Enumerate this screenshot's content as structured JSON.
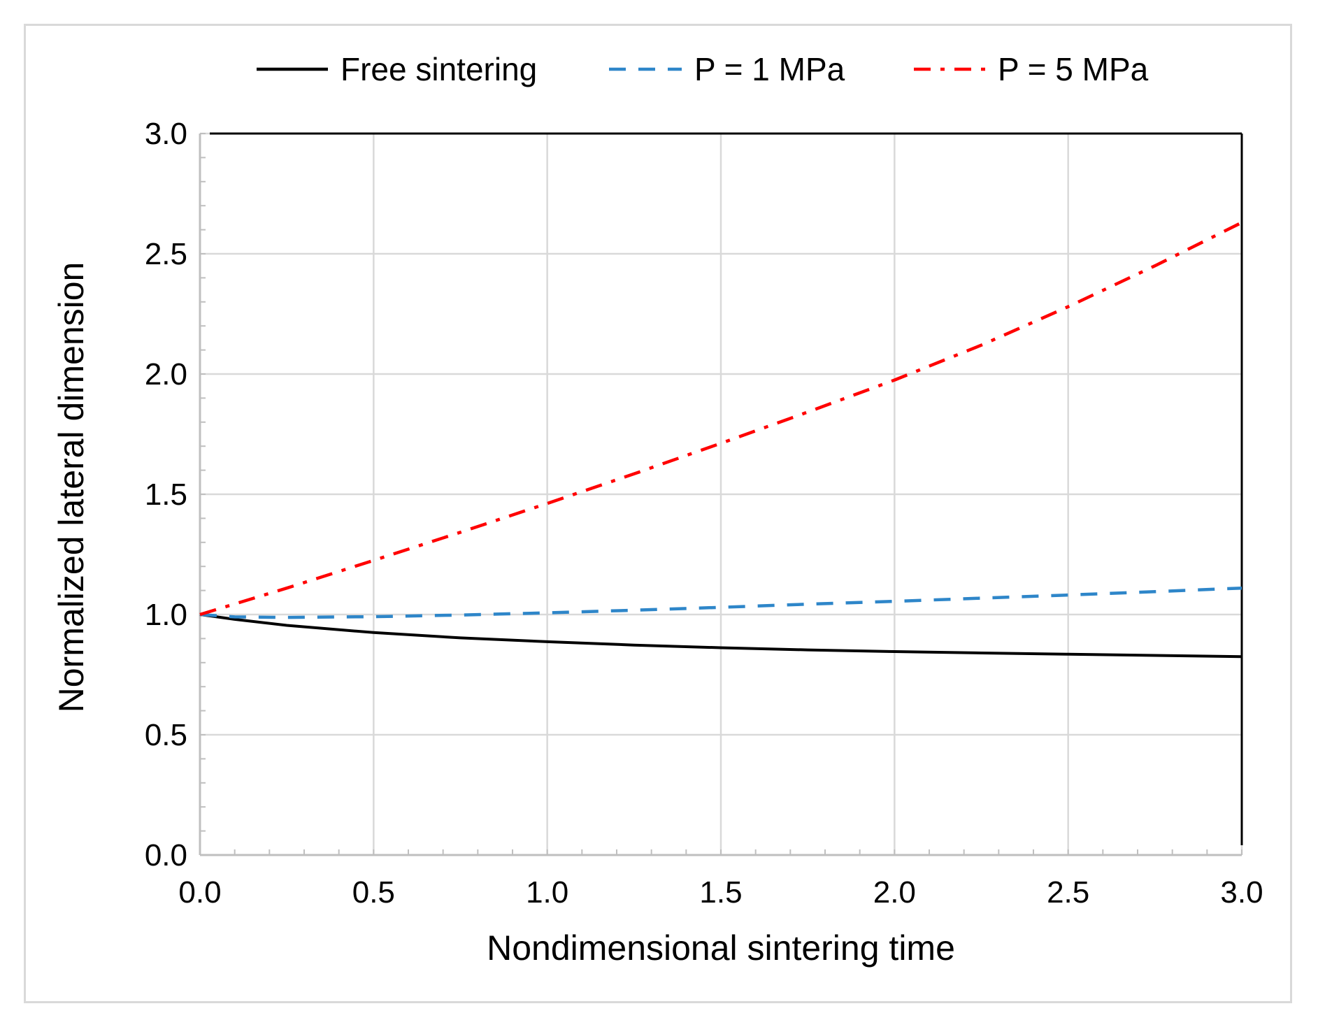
{
  "chart_data": {
    "type": "line",
    "title": "",
    "xlabel": "Nondimensional sintering time",
    "ylabel": "Normalized lateral dimension",
    "xlim": [
      0,
      3
    ],
    "ylim": [
      0,
      3
    ],
    "xticks": [
      "0.0",
      "0.5",
      "1.0",
      "1.5",
      "2.0",
      "2.5",
      "3.0"
    ],
    "yticks": [
      "0.0",
      "0.5",
      "1.0",
      "1.5",
      "2.0",
      "2.5",
      "3.0"
    ],
    "grid": true,
    "legend_position": "top",
    "series": [
      {
        "name": "Free sintering",
        "color": "#000000",
        "style": "solid",
        "x": [
          0,
          0.1,
          0.25,
          0.5,
          0.75,
          1.0,
          1.25,
          1.5,
          1.75,
          2.0,
          2.25,
          2.5,
          2.75,
          3.0
        ],
        "y": [
          1.0,
          0.98,
          0.955,
          0.925,
          0.903,
          0.887,
          0.873,
          0.862,
          0.853,
          0.846,
          0.84,
          0.835,
          0.83,
          0.825
        ]
      },
      {
        "name": "P = 1 MPa",
        "color": "#2e86c9",
        "style": "dashed",
        "x": [
          0,
          0.1,
          0.25,
          0.5,
          0.75,
          1.0,
          1.25,
          1.5,
          1.75,
          2.0,
          2.25,
          2.5,
          2.75,
          3.0
        ],
        "y": [
          1.0,
          0.99,
          0.988,
          0.991,
          0.998,
          1.007,
          1.018,
          1.03,
          1.043,
          1.055,
          1.068,
          1.081,
          1.095,
          1.11
        ]
      },
      {
        "name": "P = 5 MPa",
        "color": "#ff0000",
        "style": "dashdot",
        "x": [
          0,
          0.25,
          0.5,
          0.75,
          1.0,
          1.25,
          1.5,
          1.75,
          2.0,
          2.25,
          2.5,
          2.75,
          3.0
        ],
        "y": [
          1.0,
          1.11,
          1.225,
          1.342,
          1.462,
          1.585,
          1.712,
          1.842,
          1.975,
          2.12,
          2.28,
          2.45,
          2.63
        ]
      }
    ]
  }
}
